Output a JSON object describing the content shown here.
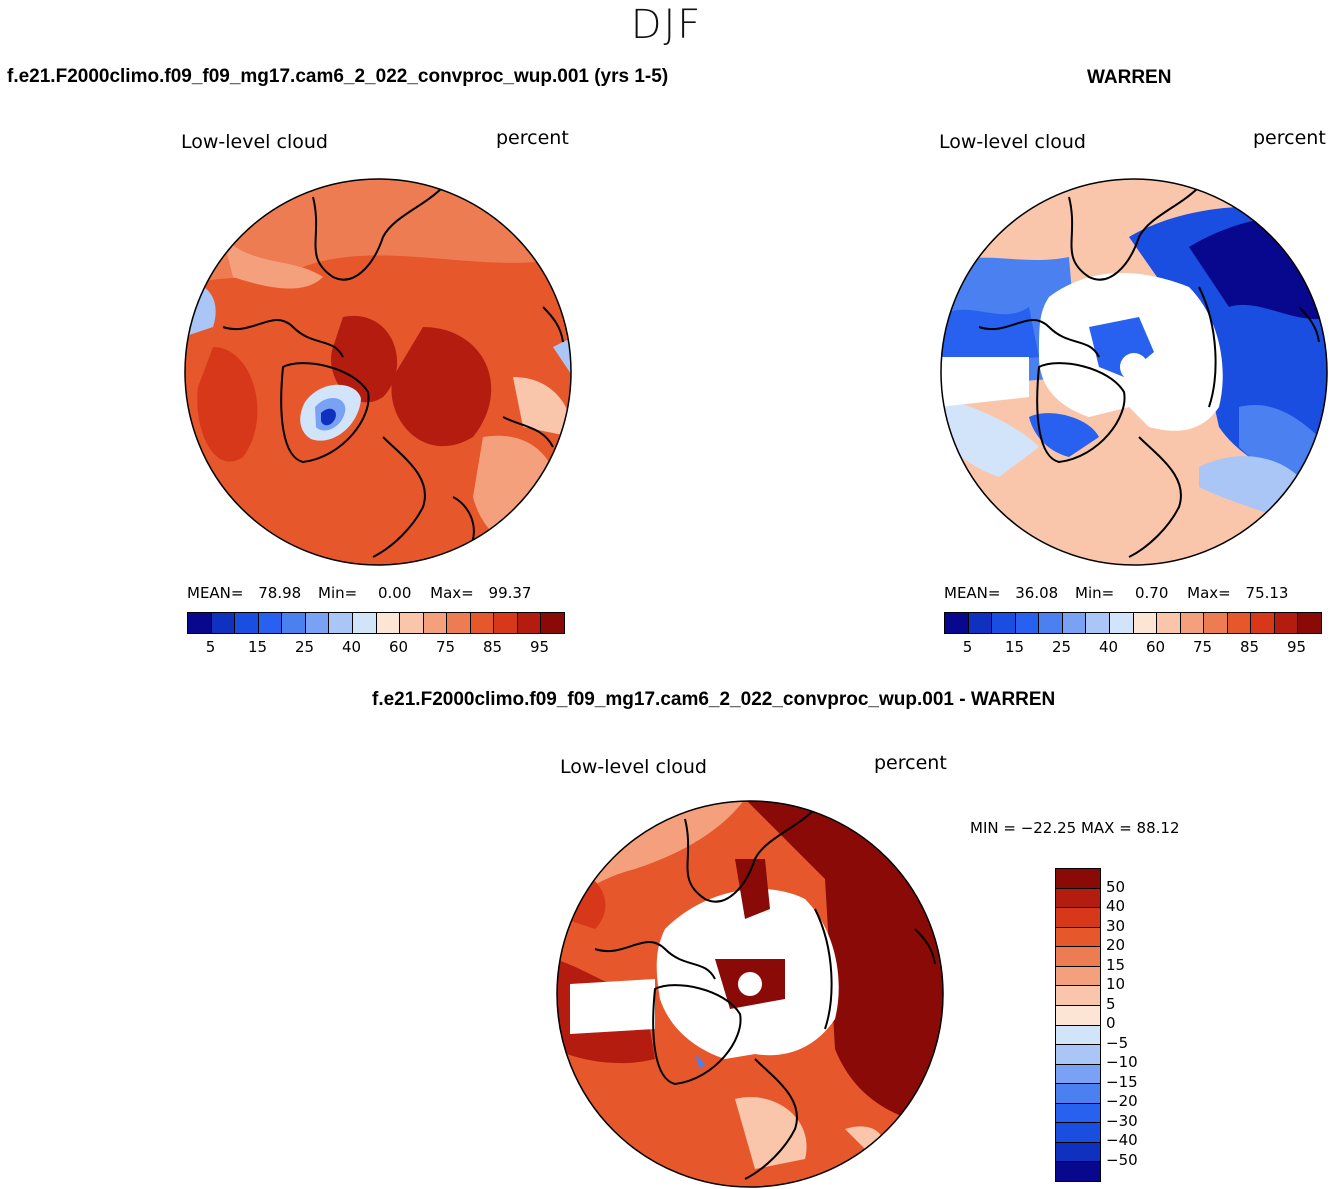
{
  "season": "DJF",
  "case_title": "f.e21.F2000climo.f09_f09_mg17.cam6_2_022_convproc_wup.001 (yrs 1-5)",
  "obs_title": "WARREN",
  "diff_title": "f.e21.F2000climo.f09_f09_mg17.cam6_2_022_convproc_wup.001 - WARREN",
  "panels": {
    "model": {
      "variable": "Low-level cloud",
      "units": "percent",
      "mean_label": "MEAN=",
      "mean": "78.98",
      "min_label": "Min=",
      "min": "0.00",
      "max_label": "Max=",
      "max": "99.37"
    },
    "obs": {
      "variable": "Low-level cloud",
      "units": "percent",
      "mean_label": "MEAN=",
      "mean": "36.08",
      "min_label": "Min=",
      "min": "0.70",
      "max_label": "Max=",
      "max": "75.13"
    },
    "diff": {
      "variable": "Low-level cloud",
      "units": "percent",
      "range_text": "MIN = −22.25 MAX =  88.12"
    }
  },
  "abs_colorbar": {
    "colors": [
      "#08088e",
      "#1030c0",
      "#1a4ee0",
      "#2860f0",
      "#4a80f0",
      "#7aa2f4",
      "#a9c6f6",
      "#d2e4fa",
      "#fde5d6",
      "#f9c6ac",
      "#f4a07c",
      "#ee7c52",
      "#e6582c",
      "#d8381a",
      "#b51c10",
      "#8a0a08"
    ],
    "tick_labels": [
      "5",
      "15",
      "25",
      "40",
      "60",
      "75",
      "85",
      "95"
    ]
  },
  "diff_colorbar": {
    "colors": [
      "#8a0a08",
      "#b51c10",
      "#d8381a",
      "#e6582c",
      "#ee7c52",
      "#f4a07c",
      "#f9c6ac",
      "#fde5d6",
      "#d2e4fa",
      "#a9c6f6",
      "#7aa2f4",
      "#4a80f0",
      "#2860f0",
      "#1a4ee0",
      "#1030c0",
      "#08088e"
    ],
    "tick_labels": [
      "50",
      "40",
      "30",
      "20",
      "15",
      "10",
      "5",
      "0",
      "−5",
      "−10",
      "−15",
      "−20",
      "−30",
      "−40",
      "−50"
    ]
  }
}
